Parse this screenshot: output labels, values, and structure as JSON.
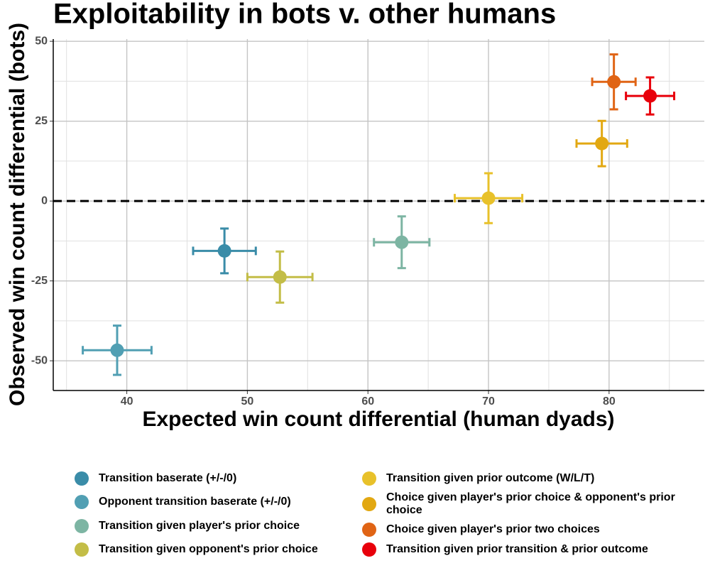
{
  "chart_data": {
    "type": "scatter",
    "title": "Exploitability in bots v. other humans",
    "x_label": "Expected win count differential (human dyads)",
    "y_label": "Observed win count differential (bots)",
    "xlim": [
      33.9,
      87.9
    ],
    "xticks": [
      40,
      50,
      60,
      70,
      80
    ],
    "xminor": [
      35,
      45,
      55,
      65,
      75,
      85
    ],
    "ylim": [
      -59.3,
      50.7
    ],
    "yticks": [
      -50,
      -25,
      0,
      25,
      50
    ],
    "yminor": [
      -37.5,
      -12.5,
      12.5,
      37.5
    ],
    "grid": true,
    "hline": 0,
    "legend": "bottom",
    "series": [
      {
        "name": "Transition baserate (+/-/0)",
        "color": "#3a8ca8",
        "x": [
          48.1
        ],
        "values": [
          -15.6
        ],
        "xerr": [
          2.6
        ],
        "yerr": [
          7
        ]
      },
      {
        "name": "Opponent transition baserate (+/-/0)",
        "color": "#519fb3",
        "x": [
          39.2
        ],
        "values": [
          -46.7
        ],
        "xerr": [
          2.85
        ],
        "yerr": [
          7.7
        ]
      },
      {
        "name": "Transition given player's prior choice",
        "color": "#7db5a3",
        "x": [
          62.8
        ],
        "values": [
          -12.9
        ],
        "xerr": [
          2.3
        ],
        "yerr": [
          8.1
        ]
      },
      {
        "name": "Transition given opponent's prior choice",
        "color": "#c3bd47",
        "x": [
          52.7
        ],
        "values": [
          -23.8
        ],
        "xerr": [
          2.7
        ],
        "yerr": [
          8
        ]
      },
      {
        "name": "Transition given prior outcome (W/L/T)",
        "color": "#e8c12a",
        "x": [
          70.0
        ],
        "values": [
          0.9
        ],
        "xerr": [
          2.8
        ],
        "yerr": [
          7.8
        ]
      },
      {
        "name": "Choice given player's prior choice & opponent's prior choice",
        "color": "#e2a812",
        "x": [
          79.4
        ],
        "values": [
          18
        ],
        "xerr": [
          2.1
        ],
        "yerr": [
          7.1
        ]
      },
      {
        "name": "Choice given player's prior two choices",
        "color": "#e06415",
        "x": [
          80.4
        ],
        "values": [
          37.3
        ],
        "xerr": [
          1.8
        ],
        "yerr": [
          8.6
        ]
      },
      {
        "name": "Transition given prior transition & prior outcome",
        "color": "#e8000b",
        "x": [
          83.4
        ],
        "values": [
          32.9
        ],
        "xerr": [
          2
        ],
        "yerr": [
          5.8
        ]
      }
    ]
  }
}
